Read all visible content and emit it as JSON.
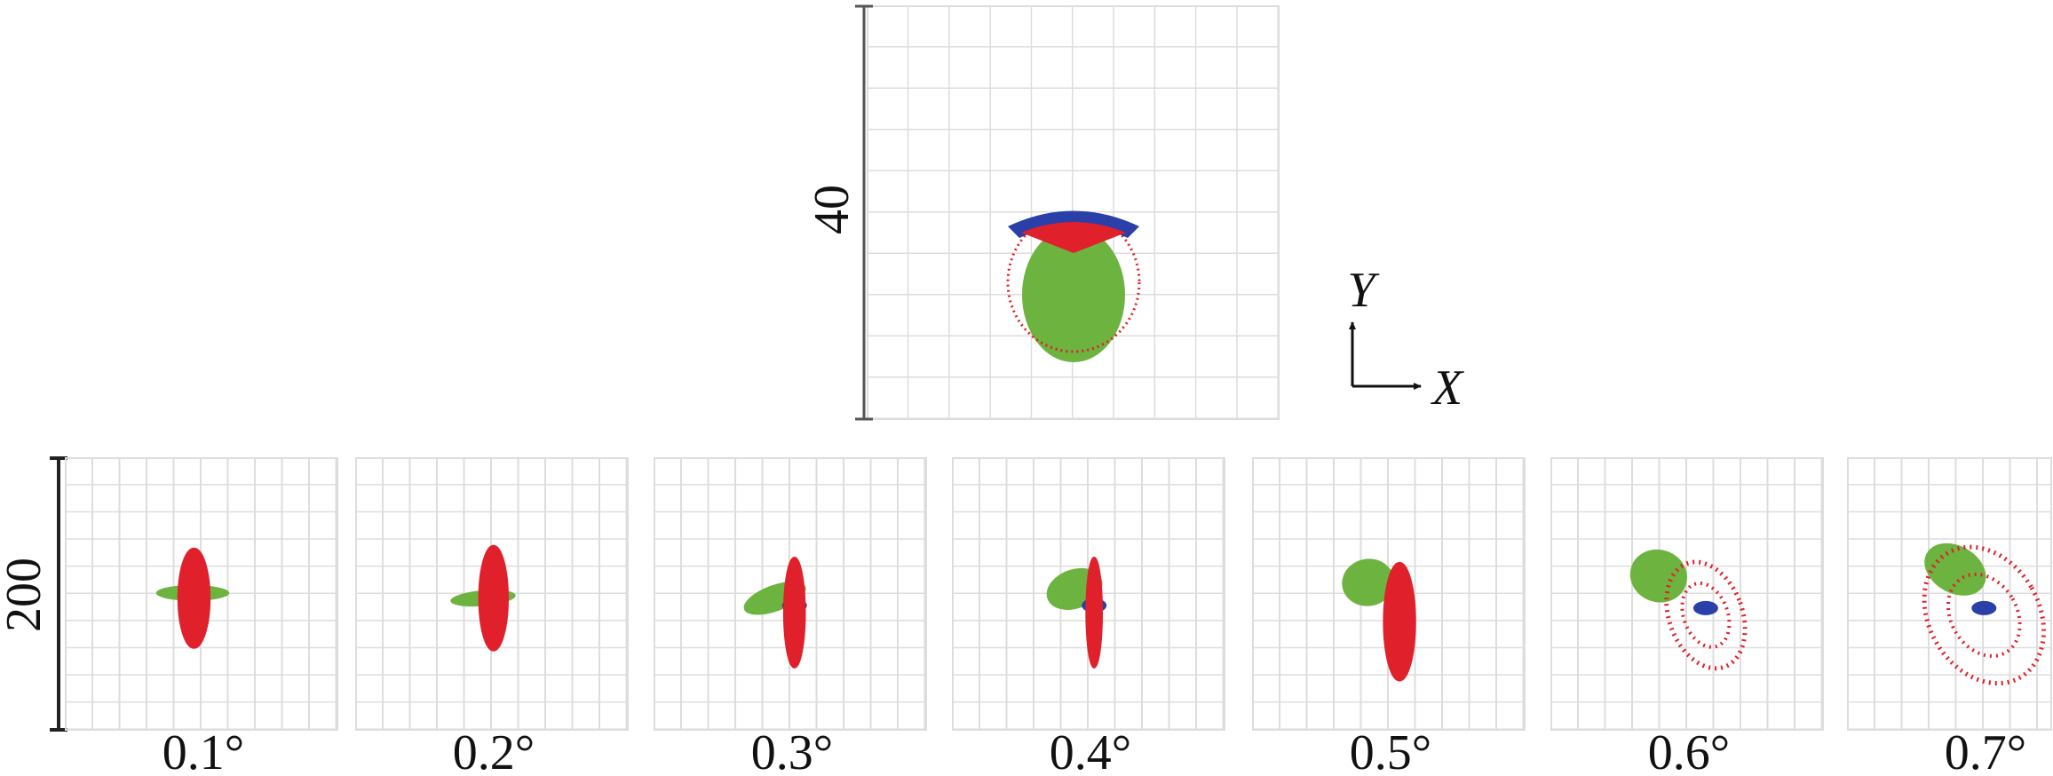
{
  "top_panel": {
    "scale_label": "40",
    "axes": {
      "y": "Y",
      "x": "X"
    }
  },
  "bottom_panels": {
    "scale_label": "200",
    "panels": [
      {
        "label": "0.1°"
      },
      {
        "label": "0.2°"
      },
      {
        "label": "0.3°"
      },
      {
        "label": "0.4°"
      },
      {
        "label": "0.5°"
      },
      {
        "label": "0.6°"
      },
      {
        "label": "0.7°"
      }
    ]
  }
}
